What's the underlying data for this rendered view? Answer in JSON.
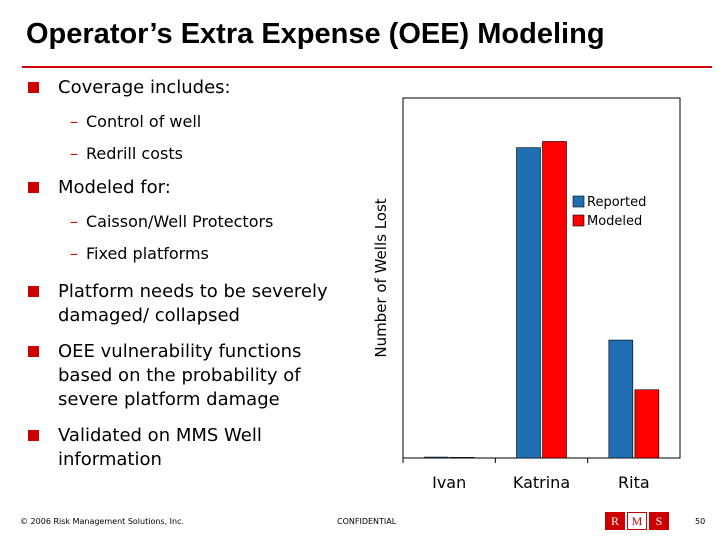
{
  "slide": {
    "title": "Operator’s Extra Expense (OEE) Modeling",
    "bullets": [
      {
        "text": "Coverage includes:",
        "subs": [
          "Control of well",
          "Redrill costs"
        ]
      },
      {
        "text": "Modeled for:",
        "subs": [
          "Caisson/Well Protectors",
          "Fixed platforms"
        ]
      },
      {
        "text": "Platform needs to be severely damaged/ collapsed",
        "subs": []
      },
      {
        "text": "OEE vulnerability functions based on the probability of severe platform damage",
        "subs": []
      },
      {
        "text": "Validated on MMS Well information",
        "subs": []
      }
    ],
    "sub_dash": "–",
    "footer_left": "© 2006 Risk Management Solutions, Inc.",
    "footer_center": "CONFIDENTIAL",
    "page_number": "50",
    "logo_letters": [
      "R",
      "M",
      "S"
    ],
    "brand_color": "#cc0000"
  },
  "chart_data": {
    "type": "bar",
    "title": "",
    "xlabel": "",
    "ylabel": "Number of Wells Lost",
    "categories": [
      "Ivan",
      "Katrina",
      "Rita"
    ],
    "series": [
      {
        "name": "Reported",
        "color": "#1f6fb2",
        "values": [
          0.3,
          100,
          38
        ]
      },
      {
        "name": "Modeled",
        "color": "#ff0000",
        "values": [
          0.2,
          102,
          22
        ]
      }
    ],
    "ylim": [
      0,
      116
    ],
    "grid": false,
    "legend_position": "top-right"
  }
}
